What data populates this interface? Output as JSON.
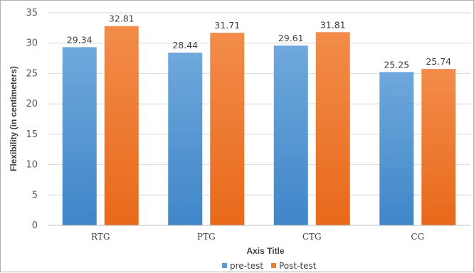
{
  "chart_data": {
    "type": "bar",
    "categories": [
      "RTG",
      "PTG",
      "CTG",
      "CG"
    ],
    "series": [
      {
        "name": "pre-test",
        "values": [
          29.34,
          28.44,
          29.61,
          25.25
        ],
        "color": "#5b9bd5"
      },
      {
        "name": "Post-test",
        "values": [
          32.81,
          31.71,
          31.81,
          25.74
        ],
        "color": "#ed7d31"
      }
    ],
    "data_labels": [
      [
        "29.34",
        "28.44",
        "29.61",
        "25.25"
      ],
      [
        "32.81",
        "31.71",
        "31.81",
        "25.74"
      ]
    ],
    "title": "",
    "xlabel": "Axis Title",
    "ylabel": "Flexibility (in centimeters)",
    "ylim": [
      0,
      35
    ],
    "yticks": [
      0,
      5,
      10,
      15,
      20,
      25,
      30,
      35
    ],
    "grid": true,
    "legend_position": "bottom"
  }
}
